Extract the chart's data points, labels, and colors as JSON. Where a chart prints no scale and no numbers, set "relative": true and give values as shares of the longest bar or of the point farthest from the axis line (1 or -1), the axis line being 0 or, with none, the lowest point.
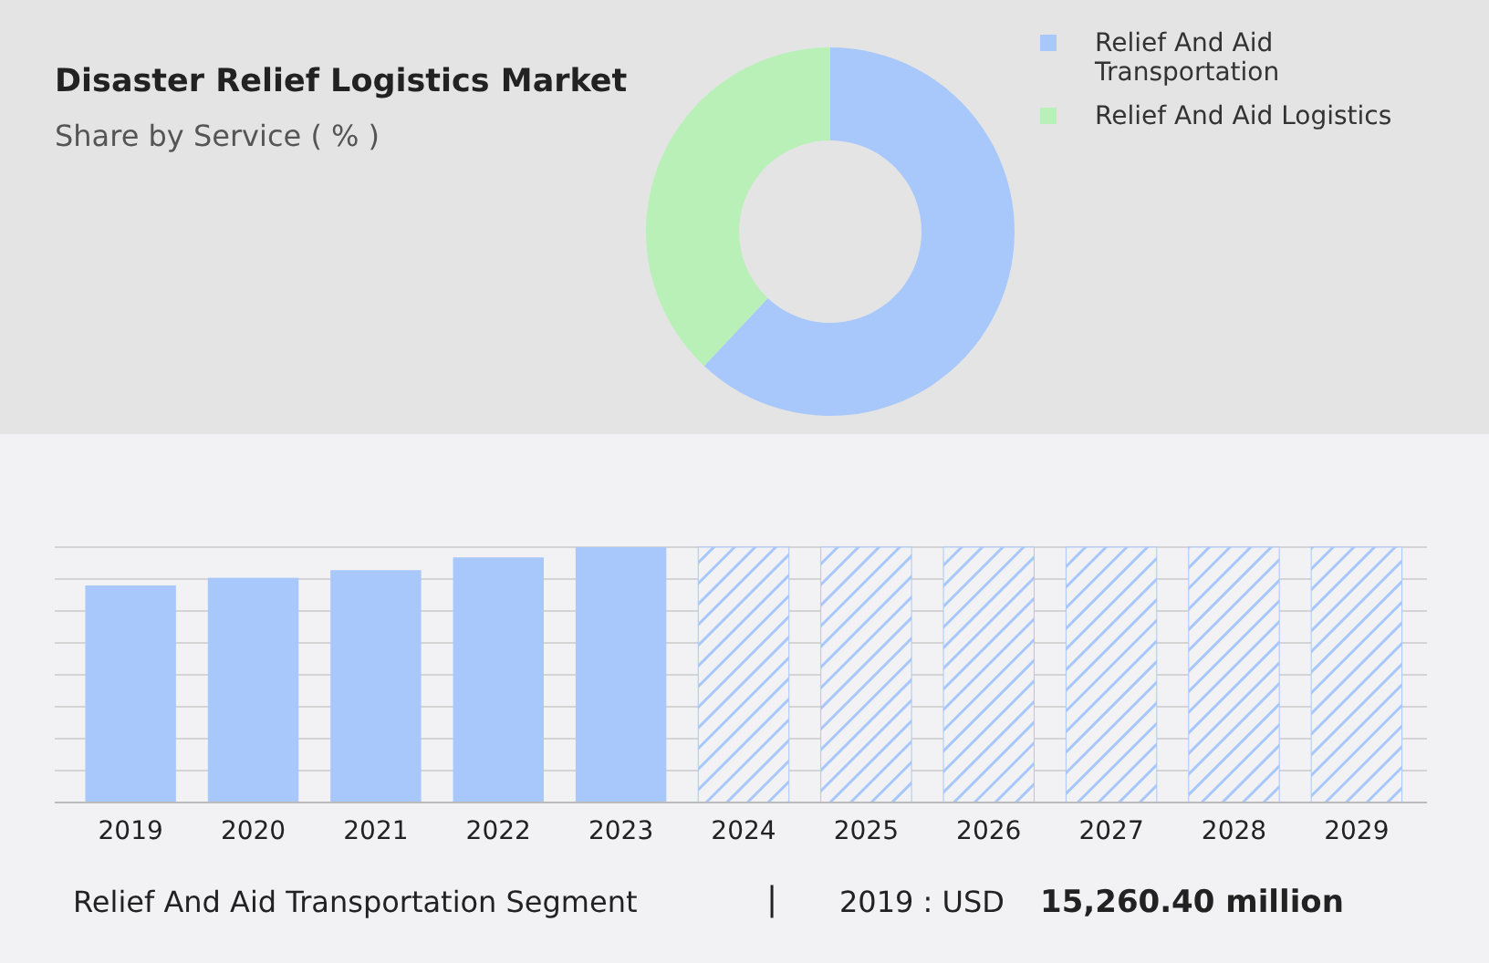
{
  "chart_data": [
    {
      "type": "donut",
      "title": "Disaster Relief Logistics Market",
      "subtitle": "Share by Service ( % )",
      "categories": [
        "Relief And Aid Transportation",
        "Relief And Aid Logistics"
      ],
      "values": [
        62,
        38
      ],
      "colors": [
        "#a8c8fc",
        "#b8f0b8"
      ],
      "legend": "top right"
    },
    {
      "type": "bar",
      "relative": true,
      "grid": true,
      "categories": [
        "2019",
        "2020",
        "2021",
        "2022",
        "2023",
        "2024",
        "2025",
        "2026",
        "2027",
        "2028",
        "2029"
      ],
      "series": [
        {
          "color": "#a8c8fc",
          "values": [
            0.85,
            0.88,
            0.91,
            0.96,
            1,
            null,
            null,
            null,
            null,
            null,
            null
          ]
        },
        {
          "color": "#a8c8fc",
          "values": [
            null,
            null,
            null,
            null,
            null,
            1,
            1,
            1,
            1,
            1,
            1
          ]
        }
      ],
      "annotations": [
        "Relief And Aid Transportation Segment",
        "|",
        "2019 : USD",
        "15,260.40 million"
      ]
    }
  ]
}
